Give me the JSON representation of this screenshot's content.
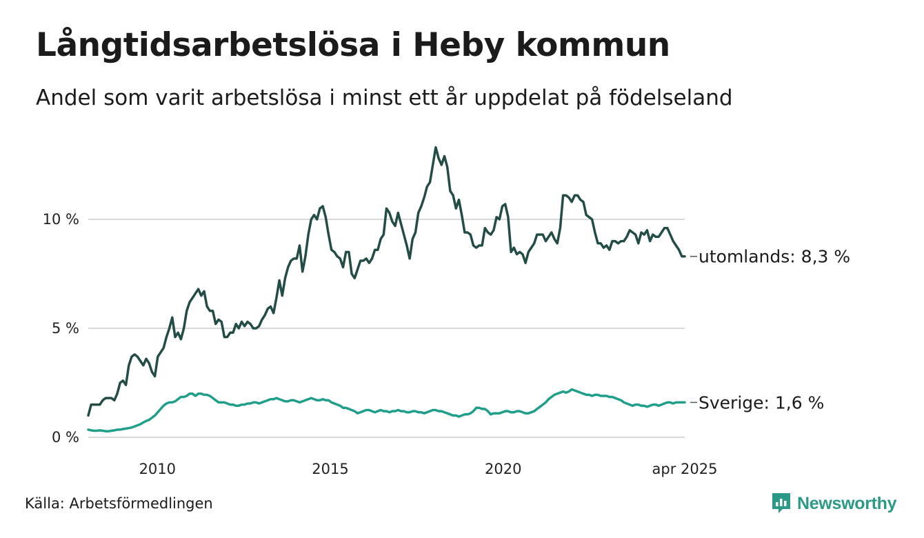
{
  "header": {
    "title": "Långtidsarbetslösa i Heby kommun",
    "subtitle": "Andel som varit arbetslösa i minst ett år uppdelat på födelseland"
  },
  "footer": {
    "source": "Källa: Arbetsförmedlingen",
    "brand": "Newsworthy"
  },
  "colors": {
    "utomlands": "#244c46",
    "sverige": "#1f9e89",
    "grid": "#d9d9d9",
    "brand": "#2a9a86"
  },
  "chart_data": {
    "type": "line",
    "x_start": "2008-01",
    "x_end": "2025-04",
    "x_ticks": [
      "2010",
      "2015",
      "2020",
      "apr 2025"
    ],
    "y_ticks": [
      "0 %",
      "5 %",
      "10 %"
    ],
    "ylim": [
      0,
      14
    ],
    "grid": true,
    "series": [
      {
        "key": "utomlands",
        "end_label": "utomlands: 8,3 %",
        "values": [
          1.0,
          1.5,
          1.5,
          1.5,
          1.5,
          1.7,
          1.8,
          1.8,
          1.8,
          1.7,
          2.0,
          2.5,
          2.6,
          2.4,
          3.3,
          3.7,
          3.8,
          3.7,
          3.5,
          3.3,
          3.6,
          3.4,
          3.0,
          2.8,
          3.7,
          3.9,
          4.1,
          4.6,
          5.0,
          5.5,
          4.6,
          4.8,
          4.5,
          5.0,
          5.8,
          6.2,
          6.4,
          6.6,
          6.8,
          6.5,
          6.7,
          6.0,
          5.8,
          5.8,
          5.2,
          5.4,
          5.3,
          4.6,
          4.6,
          4.8,
          4.8,
          5.2,
          5.0,
          5.3,
          5.1,
          5.3,
          5.2,
          5.0,
          5.0,
          5.1,
          5.4,
          5.6,
          5.9,
          6.0,
          5.7,
          6.4,
          7.2,
          6.5,
          7.3,
          7.8,
          8.1,
          8.2,
          8.2,
          8.8,
          7.6,
          8.3,
          9.3,
          10.0,
          10.2,
          10.0,
          10.5,
          10.6,
          10.1,
          9.3,
          8.6,
          8.5,
          8.3,
          8.2,
          7.8,
          8.5,
          8.5,
          7.5,
          7.3,
          7.7,
          8.1,
          8.1,
          8.2,
          8.0,
          8.2,
          8.6,
          8.6,
          9.1,
          9.3,
          10.5,
          10.3,
          9.9,
          9.7,
          10.3,
          9.8,
          9.3,
          8.8,
          8.2,
          9.1,
          9.4,
          10.3,
          10.6,
          11.0,
          11.5,
          11.7,
          12.5,
          13.3,
          12.8,
          12.5,
          12.9,
          12.4,
          11.3,
          11.1,
          10.5,
          10.9,
          10.2,
          9.4,
          9.4,
          9.3,
          8.8,
          8.7,
          8.8,
          8.8,
          9.6,
          9.4,
          9.3,
          9.5,
          10.1,
          10.0,
          10.6,
          10.7,
          10.1,
          8.5,
          8.7,
          8.4,
          8.5,
          8.4,
          8.0,
          8.5,
          8.7,
          8.9,
          9.3,
          9.3,
          9.3,
          9.0,
          9.2,
          9.4,
          9.1,
          8.9,
          9.6,
          11.1,
          11.1,
          11.0,
          10.8,
          11.1,
          11.1,
          10.9,
          10.8,
          10.2,
          10.1,
          10.0,
          9.4,
          8.9,
          8.9,
          8.7,
          8.8,
          8.6,
          9.0,
          9.0,
          8.9,
          9.0,
          9.0,
          9.2,
          9.5,
          9.4,
          9.3,
          8.9,
          9.4,
          9.3,
          9.5,
          9.0,
          9.3,
          9.2,
          9.2,
          9.4,
          9.6,
          9.6,
          9.3,
          9.0,
          8.8,
          8.6,
          8.3,
          8.3
        ]
      },
      {
        "key": "sverige",
        "end_label": "Sverige: 1,6 %",
        "values": [
          0.35,
          0.32,
          0.3,
          0.3,
          0.32,
          0.3,
          0.28,
          0.28,
          0.3,
          0.32,
          0.35,
          0.35,
          0.38,
          0.4,
          0.42,
          0.45,
          0.5,
          0.55,
          0.6,
          0.68,
          0.75,
          0.8,
          0.9,
          1.0,
          1.15,
          1.3,
          1.45,
          1.55,
          1.6,
          1.6,
          1.65,
          1.75,
          1.85,
          1.85,
          1.9,
          2.0,
          2.0,
          1.9,
          2.0,
          2.0,
          1.95,
          1.95,
          1.9,
          1.8,
          1.7,
          1.6,
          1.6,
          1.6,
          1.55,
          1.5,
          1.5,
          1.45,
          1.45,
          1.5,
          1.5,
          1.55,
          1.55,
          1.6,
          1.6,
          1.55,
          1.6,
          1.65,
          1.7,
          1.75,
          1.75,
          1.8,
          1.75,
          1.7,
          1.65,
          1.65,
          1.7,
          1.7,
          1.65,
          1.6,
          1.65,
          1.7,
          1.75,
          1.8,
          1.75,
          1.7,
          1.7,
          1.75,
          1.7,
          1.7,
          1.6,
          1.55,
          1.5,
          1.45,
          1.35,
          1.35,
          1.3,
          1.25,
          1.2,
          1.1,
          1.15,
          1.2,
          1.25,
          1.25,
          1.2,
          1.15,
          1.2,
          1.25,
          1.2,
          1.2,
          1.15,
          1.2,
          1.2,
          1.25,
          1.2,
          1.2,
          1.15,
          1.15,
          1.2,
          1.2,
          1.15,
          1.15,
          1.1,
          1.15,
          1.2,
          1.25,
          1.25,
          1.2,
          1.2,
          1.15,
          1.1,
          1.05,
          1.0,
          1.0,
          0.95,
          1.0,
          1.05,
          1.05,
          1.1,
          1.2,
          1.35,
          1.35,
          1.3,
          1.3,
          1.2,
          1.05,
          1.1,
          1.1,
          1.1,
          1.15,
          1.2,
          1.2,
          1.15,
          1.15,
          1.2,
          1.2,
          1.15,
          1.1,
          1.1,
          1.15,
          1.2,
          1.3,
          1.4,
          1.5,
          1.6,
          1.75,
          1.85,
          1.95,
          2.0,
          2.05,
          2.1,
          2.05,
          2.1,
          2.2,
          2.15,
          2.1,
          2.05,
          2.0,
          1.95,
          1.95,
          1.9,
          1.95,
          1.95,
          1.9,
          1.9,
          1.9,
          1.85,
          1.85,
          1.8,
          1.75,
          1.7,
          1.6,
          1.55,
          1.5,
          1.45,
          1.5,
          1.5,
          1.45,
          1.45,
          1.4,
          1.45,
          1.5,
          1.5,
          1.45,
          1.5,
          1.55,
          1.6,
          1.6,
          1.55,
          1.6,
          1.6,
          1.6,
          1.6
        ]
      }
    ]
  }
}
